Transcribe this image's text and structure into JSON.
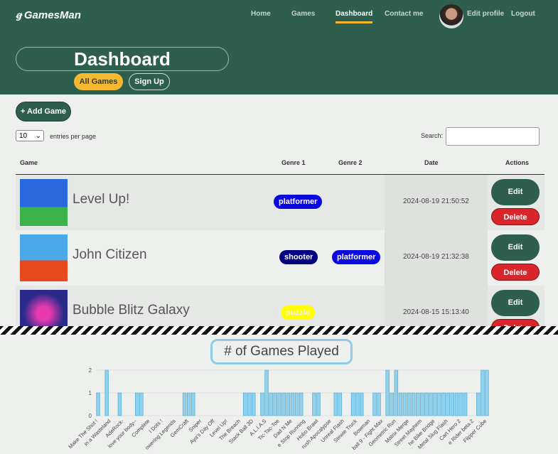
{
  "nav": {
    "brand": "GamesMan",
    "links": [
      "Home",
      "Games",
      "Dashboard",
      "Contact me"
    ],
    "active": 2,
    "user": [
      "Edit profile",
      "Logout"
    ]
  },
  "header": {
    "title": "Dashboard",
    "tabs": [
      "All Games",
      "Sign Up"
    ]
  },
  "controls": {
    "add": "+ Add Game",
    "length": "10",
    "entries": "entries per page",
    "search": "Search:"
  },
  "table": {
    "columns": [
      "Game",
      "Genre 1",
      "Genre 2",
      "Date",
      "Actions"
    ],
    "rows": [
      {
        "name": "Level Up!",
        "genres": [
          {
            "label": "platformer",
            "color": "#0a0ae0",
            "text": "#ffffff"
          }
        ],
        "date": "2024-08-19 21:50:52",
        "edit": "Edit",
        "delete": "Delete"
      },
      {
        "name": "John Citizen",
        "genres": [
          {
            "label": "shooter",
            "color": "#000080",
            "text": "#ffffff"
          },
          {
            "label": "platformer",
            "color": "#0a0ae0",
            "text": "#ffffff"
          }
        ],
        "date": "2024-08-19 21:32:38",
        "edit": "Edit",
        "delete": "Delete"
      },
      {
        "name": "Bubble Blitz Galaxy",
        "genres": [
          {
            "label": "puzzle",
            "color": "#ffff00",
            "text": "#f0f0f0"
          }
        ],
        "date": "2024-08-15 15:13:40",
        "edit": "Edit",
        "delete": "Delete"
      }
    ]
  },
  "chart_data": {
    "type": "bar",
    "title": "# of Games Played",
    "color": "#8fd0ec",
    "edge": "#4aa8d0",
    "categories": [
      "Make The Shot !",
      null,
      null,
      "in a Wasteland",
      null,
      null,
      "AdeRock-",
      null,
      null,
      "love your body--",
      null,
      null,
      "Complete",
      null,
      null,
      "I Dots !",
      null,
      null,
      "owering Legends",
      null,
      null,
      "GemCraft",
      null,
      null,
      "Sniper",
      null,
      null,
      "Aya's Day Off",
      null,
      null,
      "Level Up!",
      null,
      null,
      "The Breach",
      null,
      null,
      "Stack Ball 3D",
      null,
      null,
      "A.L.I.A.S",
      null,
      null,
      "Tic-Tac-Toe",
      null,
      null,
      "Dad N Me",
      null,
      null,
      "e Stop Running",
      null,
      null,
      "Hobo Brawl",
      null,
      null,
      "rush Apocalypse",
      null,
      null,
      "Unreal Flash",
      null,
      null,
      "Stewie Truck",
      null,
      null,
      "Bowman",
      null,
      null,
      "ball 9 - Fight Max",
      null,
      null,
      "Geometric Run",
      null,
      null,
      "Matrix Merge",
      null,
      null,
      "Street Mayhem",
      null,
      null,
      "he Bike Bridge",
      null,
      null,
      "Metal Slug Flash",
      null,
      null,
      "Cart Hero 2",
      null,
      null,
      "e Rider beta 2",
      null,
      null,
      "Flipper Cube"
    ],
    "values": [
      1,
      0,
      2,
      0,
      0,
      1,
      0,
      0,
      0,
      1,
      1,
      0,
      0,
      0,
      0,
      0,
      0,
      0,
      0,
      0,
      1,
      1,
      1,
      0,
      0,
      0,
      0,
      0,
      0,
      0,
      0,
      0,
      0,
      0,
      1,
      1,
      1,
      0,
      1,
      2,
      1,
      1,
      1,
      1,
      1,
      1,
      1,
      1,
      0,
      0,
      1,
      1,
      0,
      0,
      0,
      1,
      1,
      0,
      0,
      1,
      1,
      1,
      0,
      0,
      1,
      1,
      0,
      2,
      1,
      2,
      1,
      1,
      1,
      1,
      1,
      1,
      1,
      1,
      1,
      1,
      1,
      1,
      1,
      1,
      1,
      1,
      0,
      0,
      1,
      2,
      2
    ],
    "ylim": [
      0,
      2.5
    ],
    "yticks": [
      0,
      1,
      2
    ],
    "grid": true
  }
}
